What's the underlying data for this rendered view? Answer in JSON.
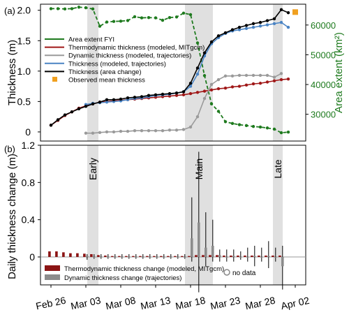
{
  "chart_data": [
    {
      "panel_label": "(a)",
      "type": "line",
      "ylabel": "Thickness (m)",
      "ylim": [
        -0.15,
        2.1
      ],
      "y_ticks": [
        "0",
        "0.5",
        "1.0",
        "1.5",
        "2.0"
      ],
      "y2label": "Area extent (km²)",
      "y2lim": [
        21000,
        67000
      ],
      "y2_ticks": [
        "30000",
        "40000",
        "50000",
        "60000"
      ],
      "shaded_periods": [
        [
          5.2,
          6.8
        ],
        [
          19.2,
          23.2
        ],
        [
          31.8,
          33.2
        ]
      ],
      "legend_position": "upper-left",
      "series": [
        {
          "name": "Area extent FYI",
          "axis": "right",
          "color": "#1e7a1e",
          "x": [
            0,
            1,
            2,
            3,
            4,
            5,
            6,
            7,
            8,
            9,
            10,
            11,
            12,
            13,
            14,
            15,
            16,
            17,
            18,
            19,
            20,
            21,
            22,
            23,
            24,
            25,
            26,
            27,
            28,
            29,
            30,
            31,
            32,
            33,
            34
          ],
          "values": [
            65500,
            65500,
            65400,
            65500,
            66000,
            65800,
            65400,
            59600,
            61000,
            61200,
            61300,
            61500,
            62800,
            62400,
            62500,
            62400,
            61600,
            62500,
            62700,
            64000,
            63500,
            54000,
            43000,
            33500,
            31000,
            27500,
            26900,
            26500,
            26200,
            25900,
            25700,
            25400,
            25000,
            23800,
            24000
          ]
        },
        {
          "name": "Thermodynamic thickness (modeled, MITgcm)",
          "axis": "left",
          "color": "#a01818",
          "x": [
            0,
            1,
            2,
            3,
            4,
            5,
            6,
            7,
            8,
            9,
            10,
            11,
            12,
            13,
            14,
            15,
            16,
            17,
            18,
            19,
            20,
            21,
            22,
            23,
            24,
            25,
            26,
            27,
            28,
            29,
            30,
            31,
            32,
            33,
            34
          ],
          "values": [
            0.11,
            0.19,
            0.27,
            0.33,
            0.39,
            0.43,
            0.46,
            0.49,
            0.5,
            0.51,
            0.52,
            0.53,
            0.54,
            0.55,
            0.56,
            0.57,
            0.58,
            0.59,
            0.6,
            0.61,
            0.63,
            0.65,
            0.67,
            0.69,
            0.71,
            0.72,
            0.74,
            0.75,
            0.77,
            0.79,
            0.8,
            0.82,
            0.84,
            0.86,
            0.87
          ]
        },
        {
          "name": "Dynamic thickness (modeled, trajectories)",
          "axis": "left",
          "color": "#9a9a9a",
          "x": [
            5,
            6,
            7,
            8,
            9,
            10,
            11,
            12,
            13,
            14,
            15,
            16,
            17,
            18,
            19,
            20,
            21,
            22,
            23,
            24,
            25,
            26,
            27,
            28,
            29,
            30,
            31,
            32,
            33
          ],
          "values": [
            -0.02,
            -0.02,
            -0.01,
            0.0,
            0.0,
            0.01,
            0.01,
            0.02,
            0.02,
            0.02,
            0.02,
            0.02,
            0.03,
            0.03,
            0.04,
            0.08,
            0.25,
            0.55,
            0.78,
            0.86,
            0.92,
            0.92,
            0.93,
            0.93,
            0.93,
            0.93,
            0.93,
            0.9,
            0.96
          ]
        },
        {
          "name": "Thickness (modeled, trajectories)",
          "axis": "left",
          "color": "#4a84c4",
          "x": [
            5,
            6,
            7,
            8,
            9,
            10,
            11,
            12,
            13,
            14,
            15,
            16,
            17,
            18,
            19,
            20,
            21,
            22,
            23,
            24,
            25,
            26,
            27,
            28,
            29,
            30,
            31,
            32,
            33,
            34
          ],
          "values": [
            0.45,
            0.47,
            0.48,
            0.49,
            0.5,
            0.51,
            0.53,
            0.55,
            0.56,
            0.58,
            0.6,
            0.61,
            0.62,
            0.64,
            0.66,
            0.75,
            0.95,
            1.25,
            1.45,
            1.55,
            1.62,
            1.66,
            1.68,
            1.7,
            1.72,
            1.74,
            1.76,
            1.78,
            1.8,
            1.72
          ]
        },
        {
          "name": "Thickness (area change)",
          "axis": "left",
          "color": "#000000",
          "x": [
            0,
            1,
            2,
            3,
            4,
            5,
            6,
            7,
            8,
            9,
            10,
            11,
            12,
            13,
            14,
            15,
            16,
            17,
            18,
            19,
            20,
            21,
            22,
            23,
            24,
            25,
            26,
            27,
            28,
            29,
            30,
            31,
            32,
            33,
            34
          ],
          "values": [
            0.11,
            0.2,
            0.28,
            0.33,
            0.38,
            0.42,
            0.46,
            0.49,
            0.53,
            0.53,
            0.54,
            0.56,
            0.57,
            0.58,
            0.6,
            0.61,
            0.62,
            0.63,
            0.64,
            0.66,
            0.8,
            1.05,
            1.3,
            1.48,
            1.58,
            1.63,
            1.68,
            1.72,
            1.75,
            1.78,
            1.8,
            1.83,
            1.86,
            2.01,
            1.96
          ]
        },
        {
          "name": "Observed mean thickness",
          "axis": "left",
          "type": "marker",
          "color": "#f0a020",
          "x": [
            35
          ],
          "values": [
            1.97
          ]
        }
      ]
    },
    {
      "panel_label": "(b)",
      "type": "bar",
      "ylabel": "Daily thickness change (m)",
      "ylim": [
        -0.3,
        1.2
      ],
      "y_ticks": [
        "0",
        "0.4",
        "0.8",
        "1.2"
      ],
      "x_tick_labels": [
        "Feb 26",
        "Mar 03",
        "Mar 08",
        "Mar 13",
        "Mar 18",
        "Mar 23",
        "Mar 28",
        "Apr 02"
      ],
      "x_tick_days": [
        0,
        5,
        10,
        15,
        20,
        25,
        30,
        35
      ],
      "shaded_periods": [
        [
          5.2,
          6.8
        ],
        [
          19.2,
          23.2
        ],
        [
          31.8,
          33.2
        ]
      ],
      "period_labels": [
        "Early",
        "Main",
        "Late"
      ],
      "legend_position": "lower-left",
      "legend": [
        "Thermodynamic thickness change  (modeled, MITgcm)",
        "Dynamic thickness change (trajectories)"
      ],
      "no_data_label": "no data",
      "series": [
        {
          "name": "Thermodynamic thickness change  (modeled, MITgcm)",
          "color": "#8b1414",
          "x": [
            0,
            1,
            2,
            3,
            4,
            5,
            6,
            7,
            8,
            9,
            10,
            11,
            12,
            13,
            14,
            15,
            16,
            17,
            18,
            19,
            20,
            21,
            22,
            23,
            24,
            25,
            26,
            27,
            28,
            29,
            30,
            31,
            32,
            33
          ],
          "values": [
            0.06,
            0.06,
            0.05,
            0.04,
            0.04,
            0.035,
            0.03,
            0.02,
            0.015,
            0.01,
            0.01,
            0.01,
            0.01,
            0.01,
            0.01,
            0.01,
            0.01,
            0.01,
            0.01,
            0.01,
            0.01,
            0.02,
            0.02,
            0.02,
            0.02,
            0.015,
            0.015,
            0.015,
            0.015,
            0.015,
            0.015,
            0.015,
            0.015,
            0.015
          ]
        },
        {
          "name": "Dynamic thickness change (trajectories)",
          "color": "#8c8c8c",
          "x": [
            5,
            6,
            7,
            8,
            9,
            10,
            11,
            12,
            13,
            14,
            15,
            16,
            17,
            18,
            19,
            20,
            21,
            22,
            23,
            24,
            25,
            26,
            27,
            28,
            29,
            30,
            31,
            32,
            33
          ],
          "values": [
            0.01,
            0.0,
            0.0,
            0.0,
            0.0,
            0.0,
            0.0,
            0.0,
            0.0,
            0.0,
            0.0,
            0.0,
            0.0,
            0.0,
            0.0,
            0.2,
            0.37,
            0.1,
            0.12,
            0.02,
            0.0,
            0.01,
            0.0,
            0.0,
            0.01,
            0.0,
            0.01,
            0.0,
            -0.1
          ],
          "error_low": [
            -0.03,
            -0.02,
            -0.02,
            -0.02,
            -0.02,
            -0.02,
            -0.02,
            -0.02,
            -0.02,
            -0.02,
            -0.02,
            -0.02,
            -0.02,
            -0.02,
            -0.02,
            -0.05,
            -0.38,
            -0.1,
            -0.05,
            -0.05,
            -0.05,
            -0.05,
            -0.03,
            -0.05,
            -0.1,
            -0.05,
            -0.12,
            -0.05,
            -0.35
          ],
          "error_high": [
            0.03,
            0.03,
            0.03,
            0.03,
            0.03,
            0.03,
            0.03,
            0.03,
            0.03,
            0.03,
            0.03,
            0.03,
            0.03,
            0.03,
            0.03,
            0.64,
            1.13,
            0.48,
            0.4,
            0.08,
            0.08,
            0.08,
            0.06,
            0.1,
            0.12,
            0.1,
            0.17,
            0.1,
            0.12
          ]
        }
      ]
    }
  ]
}
